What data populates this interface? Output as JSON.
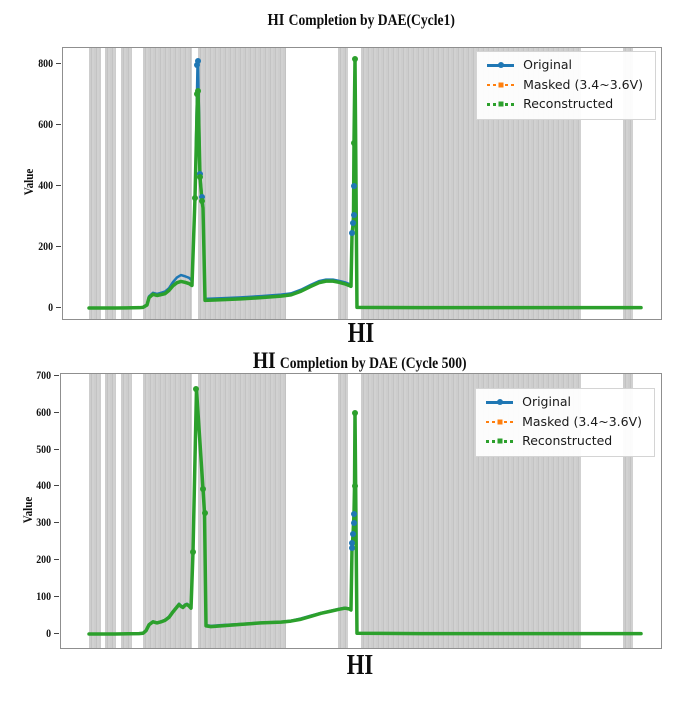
{
  "figure": {
    "background": "#ffffff",
    "frame_color": "#8f8f8f",
    "masked_band_stripe_light": "#d1d1d1",
    "masked_band_stripe_mid": "#cdcdcd",
    "masked_band_stripe_dark": "#c3c3c3",
    "series_colors": {
      "original": "#1f77b4",
      "masked": "#ff7f0e",
      "reconstructed": "#2ca02c"
    }
  },
  "chart_data": [
    {
      "type": "line",
      "title": "HI Completion by DAE(Cycle1)",
      "title_hi": "HI",
      "title_rest": "Completion by DAE(Cycle1)",
      "xlabel": "HI",
      "ylabel": "Value",
      "ylim": [
        -36,
        852
      ],
      "yticks": [
        0,
        200,
        400,
        600,
        800
      ],
      "x_ticklabels_shown": false,
      "grid": false,
      "legend_position": "upper right",
      "legend": [
        {
          "label": "Original",
          "color": "#1f77b4",
          "dash": "solid",
          "marker": "circle"
        },
        {
          "label": "Masked (3.4~3.6V)",
          "color": "#ff7f0e",
          "dash": "dashed",
          "marker": "square"
        },
        {
          "label": "Reconstructed",
          "color": "#2ca02c",
          "dash": "dashed",
          "marker": "square"
        }
      ],
      "masked_bands_x": [
        [
          0.0435,
          0.0635
        ],
        [
          0.0702,
          0.0886
        ],
        [
          0.097,
          0.1154
        ],
        [
          0.1338,
          0.2157
        ],
        [
          0.2258,
          0.3729
        ],
        [
          0.4599,
          0.4766
        ],
        [
          0.4983,
          0.8662
        ],
        [
          0.9365,
          0.9532
        ]
      ],
      "series": [
        {
          "name": "Original",
          "color": "#1f77b4",
          "width": 2.5,
          "points": [
            [
              0.0435,
              0
            ],
            [
              0.09,
              0
            ],
            [
              0.128,
              1
            ],
            [
              0.1338,
              3
            ],
            [
              0.1405,
              12
            ],
            [
              0.1438,
              38
            ],
            [
              0.1505,
              50
            ],
            [
              0.1572,
              46
            ],
            [
              0.1639,
              50
            ],
            [
              0.1706,
              54
            ],
            [
              0.1773,
              65
            ],
            [
              0.1839,
              85
            ],
            [
              0.1906,
              100
            ],
            [
              0.1973,
              108
            ],
            [
              0.204,
              104
            ],
            [
              0.2107,
              99
            ],
            [
              0.2157,
              90
            ],
            [
              0.2207,
              365
            ],
            [
              0.2249,
              795
            ],
            [
              0.2258,
              810
            ],
            [
              0.2291,
              440
            ],
            [
              0.2324,
              365
            ],
            [
              0.2341,
              338
            ],
            [
              0.2375,
              30
            ],
            [
              0.2642,
              32
            ],
            [
              0.2977,
              35
            ],
            [
              0.3311,
              39
            ],
            [
              0.3645,
              44
            ],
            [
              0.3813,
              48
            ],
            [
              0.398,
              60
            ],
            [
              0.4147,
              76
            ],
            [
              0.4281,
              88
            ],
            [
              0.4398,
              93
            ],
            [
              0.4515,
              93
            ],
            [
              0.4615,
              89
            ],
            [
              0.4716,
              84
            ],
            [
              0.4783,
              79
            ],
            [
              0.4816,
              76
            ],
            [
              0.4833,
              245
            ],
            [
              0.4849,
              280
            ],
            [
              0.4858,
              305
            ],
            [
              0.4866,
              400
            ],
            [
              0.4883,
              814
            ],
            [
              0.4916,
              3
            ],
            [
              0.6,
              1
            ],
            [
              0.8,
              1
            ],
            [
              0.9666,
              1
            ]
          ],
          "markers": [
            [
              0.2249,
              795
            ],
            [
              0.2258,
              810
            ],
            [
              0.2291,
              440
            ],
            [
              0.2324,
              365
            ],
            [
              0.4833,
              245
            ],
            [
              0.4849,
              280
            ],
            [
              0.4858,
              305
            ],
            [
              0.4866,
              400
            ]
          ]
        },
        {
          "name": "Masked (3.4~3.6V)",
          "color": "#ff7f0e",
          "width": 2,
          "follows": "Reconstructed",
          "points": [],
          "markers": []
        },
        {
          "name": "Reconstructed",
          "color": "#2ca02c",
          "width": 3.5,
          "points": [
            [
              0.0435,
              0
            ],
            [
              0.09,
              0
            ],
            [
              0.128,
              1
            ],
            [
              0.1338,
              2
            ],
            [
              0.1405,
              10
            ],
            [
              0.1438,
              34
            ],
            [
              0.1505,
              45
            ],
            [
              0.1572,
              41
            ],
            [
              0.1639,
              44
            ],
            [
              0.1706,
              47
            ],
            [
              0.1773,
              58
            ],
            [
              0.1839,
              73
            ],
            [
              0.1906,
              83
            ],
            [
              0.1973,
              87
            ],
            [
              0.204,
              84
            ],
            [
              0.2107,
              80
            ],
            [
              0.2157,
              74
            ],
            [
              0.2207,
              360
            ],
            [
              0.2249,
              700
            ],
            [
              0.2258,
              710
            ],
            [
              0.2291,
              428
            ],
            [
              0.2324,
              352
            ],
            [
              0.2341,
              328
            ],
            [
              0.2375,
              25
            ],
            [
              0.2642,
              27
            ],
            [
              0.2977,
              30
            ],
            [
              0.3311,
              34
            ],
            [
              0.3645,
              39
            ],
            [
              0.3813,
              43
            ],
            [
              0.398,
              55
            ],
            [
              0.4147,
              71
            ],
            [
              0.4281,
              83
            ],
            [
              0.4398,
              88
            ],
            [
              0.4515,
              88
            ],
            [
              0.4615,
              84
            ],
            [
              0.4716,
              79
            ],
            [
              0.4783,
              74
            ],
            [
              0.4816,
              71
            ],
            [
              0.4833,
              240
            ],
            [
              0.4849,
              272
            ],
            [
              0.4858,
              300
            ],
            [
              0.4866,
              540
            ],
            [
              0.4883,
              816
            ],
            [
              0.4916,
              2
            ],
            [
              0.6,
              1
            ],
            [
              0.8,
              1
            ],
            [
              0.9666,
              1
            ]
          ],
          "markers": [
            [
              0.2207,
              360
            ],
            [
              0.2249,
              700
            ],
            [
              0.2258,
              710
            ],
            [
              0.2291,
              428
            ],
            [
              0.2324,
              352
            ],
            [
              0.4866,
              540
            ],
            [
              0.4883,
              816
            ]
          ]
        }
      ]
    },
    {
      "type": "line",
      "title": "HI Completion by DAE (Cycle 500)",
      "title_hi": "HI",
      "title_rest": "Completion by DAE (Cycle 500)",
      "xlabel": "HI",
      "ylabel": "Value",
      "ylim": [
        -38,
        705
      ],
      "yticks": [
        0,
        100,
        200,
        300,
        400,
        500,
        600,
        700
      ],
      "x_ticklabels_shown": false,
      "grid": false,
      "legend_position": "upper right",
      "legend": [
        {
          "label": "Original",
          "color": "#1f77b4",
          "dash": "solid",
          "marker": "circle"
        },
        {
          "label": "Masked (3.4~3.6V)",
          "color": "#ff7f0e",
          "dash": "dashed",
          "marker": "square"
        },
        {
          "label": "Reconstructed",
          "color": "#2ca02c",
          "dash": "dashed",
          "marker": "square"
        }
      ],
      "masked_bands_x": [
        [
          0.0467,
          0.0667
        ],
        [
          0.0733,
          0.0917
        ],
        [
          0.1,
          0.1183
        ],
        [
          0.1367,
          0.2183
        ],
        [
          0.2283,
          0.375
        ],
        [
          0.4617,
          0.4783
        ],
        [
          0.5,
          0.8667
        ],
        [
          0.9367,
          0.9533
        ]
      ],
      "series": [
        {
          "name": "Original",
          "color": "#1f77b4",
          "width": 2.5,
          "points": [
            [
              0.0467,
              0
            ],
            [
              0.09,
              0
            ],
            [
              0.13,
              1
            ],
            [
              0.1367,
              3
            ],
            [
              0.1417,
              10
            ],
            [
              0.1467,
              26
            ],
            [
              0.1533,
              34
            ],
            [
              0.16,
              31
            ],
            [
              0.1667,
              34
            ],
            [
              0.1733,
              38
            ],
            [
              0.18,
              47
            ],
            [
              0.1867,
              62
            ],
            [
              0.1933,
              75
            ],
            [
              0.1967,
              82
            ],
            [
              0.2,
              77
            ],
            [
              0.2033,
              74
            ],
            [
              0.2067,
              80
            ],
            [
              0.21,
              82
            ],
            [
              0.2133,
              78
            ],
            [
              0.2167,
              72
            ],
            [
              0.22,
              222
            ],
            [
              0.2258,
              658
            ],
            [
              0.2367,
              392
            ],
            [
              0.2392,
              328
            ],
            [
              0.2417,
              24
            ],
            [
              0.25,
              22
            ],
            [
              0.2667,
              24
            ],
            [
              0.3,
              27
            ],
            [
              0.3333,
              31
            ],
            [
              0.3667,
              33
            ],
            [
              0.3833,
              36
            ],
            [
              0.4,
              42
            ],
            [
              0.4167,
              50
            ],
            [
              0.4333,
              57
            ],
            [
              0.45,
              63
            ],
            [
              0.4633,
              68
            ],
            [
              0.4733,
              71
            ],
            [
              0.48,
              69
            ],
            [
              0.4833,
              66
            ],
            [
              0.485,
              232
            ],
            [
              0.4858,
              248
            ],
            [
              0.4867,
              272
            ],
            [
              0.4875,
              300
            ],
            [
              0.4883,
              326
            ],
            [
              0.4892,
              400
            ],
            [
              0.49,
              598
            ],
            [
              0.4933,
              2
            ],
            [
              0.6,
              1
            ],
            [
              0.8,
              1
            ],
            [
              0.9667,
              1
            ]
          ],
          "markers": [
            [
              0.485,
              232
            ],
            [
              0.4858,
              248
            ],
            [
              0.4867,
              272
            ],
            [
              0.4875,
              300
            ],
            [
              0.4883,
              326
            ]
          ]
        },
        {
          "name": "Masked (3.4~3.6V)",
          "color": "#ff7f0e",
          "width": 2,
          "follows": "Reconstructed",
          "points": [],
          "markers": []
        },
        {
          "name": "Reconstructed",
          "color": "#2ca02c",
          "width": 3.5,
          "points": [
            [
              0.0467,
              0
            ],
            [
              0.09,
              0
            ],
            [
              0.13,
              1
            ],
            [
              0.1367,
              2
            ],
            [
              0.1417,
              9
            ],
            [
              0.1467,
              25
            ],
            [
              0.1533,
              33
            ],
            [
              0.16,
              30
            ],
            [
              0.1667,
              33
            ],
            [
              0.1733,
              37
            ],
            [
              0.18,
              45
            ],
            [
              0.1867,
              60
            ],
            [
              0.1933,
              73
            ],
            [
              0.1967,
              80
            ],
            [
              0.2,
              75
            ],
            [
              0.2033,
              72
            ],
            [
              0.2067,
              78
            ],
            [
              0.21,
              80
            ],
            [
              0.2133,
              76
            ],
            [
              0.2167,
              70
            ],
            [
              0.22,
              222
            ],
            [
              0.2258,
              663
            ],
            [
              0.2367,
              392
            ],
            [
              0.2392,
              328
            ],
            [
              0.2417,
              22
            ],
            [
              0.25,
              20
            ],
            [
              0.2667,
              22
            ],
            [
              0.3,
              26
            ],
            [
              0.3333,
              30
            ],
            [
              0.3667,
              32
            ],
            [
              0.3833,
              35
            ],
            [
              0.4,
              40
            ],
            [
              0.4167,
              48
            ],
            [
              0.4333,
              56
            ],
            [
              0.45,
              62
            ],
            [
              0.4633,
              67
            ],
            [
              0.4733,
              70
            ],
            [
              0.48,
              68
            ],
            [
              0.4833,
              65
            ],
            [
              0.485,
              230
            ],
            [
              0.4858,
              246
            ],
            [
              0.4867,
              270
            ],
            [
              0.4875,
              298
            ],
            [
              0.4883,
              324
            ],
            [
              0.4892,
              400
            ],
            [
              0.49,
              600
            ],
            [
              0.4933,
              2
            ],
            [
              0.6,
              1
            ],
            [
              0.8,
              1
            ],
            [
              0.9667,
              1
            ]
          ],
          "markers": [
            [
              0.22,
              222
            ],
            [
              0.2258,
              663
            ],
            [
              0.2367,
              392
            ],
            [
              0.2392,
              328
            ],
            [
              0.4892,
              400
            ],
            [
              0.49,
              600
            ]
          ]
        }
      ]
    }
  ]
}
